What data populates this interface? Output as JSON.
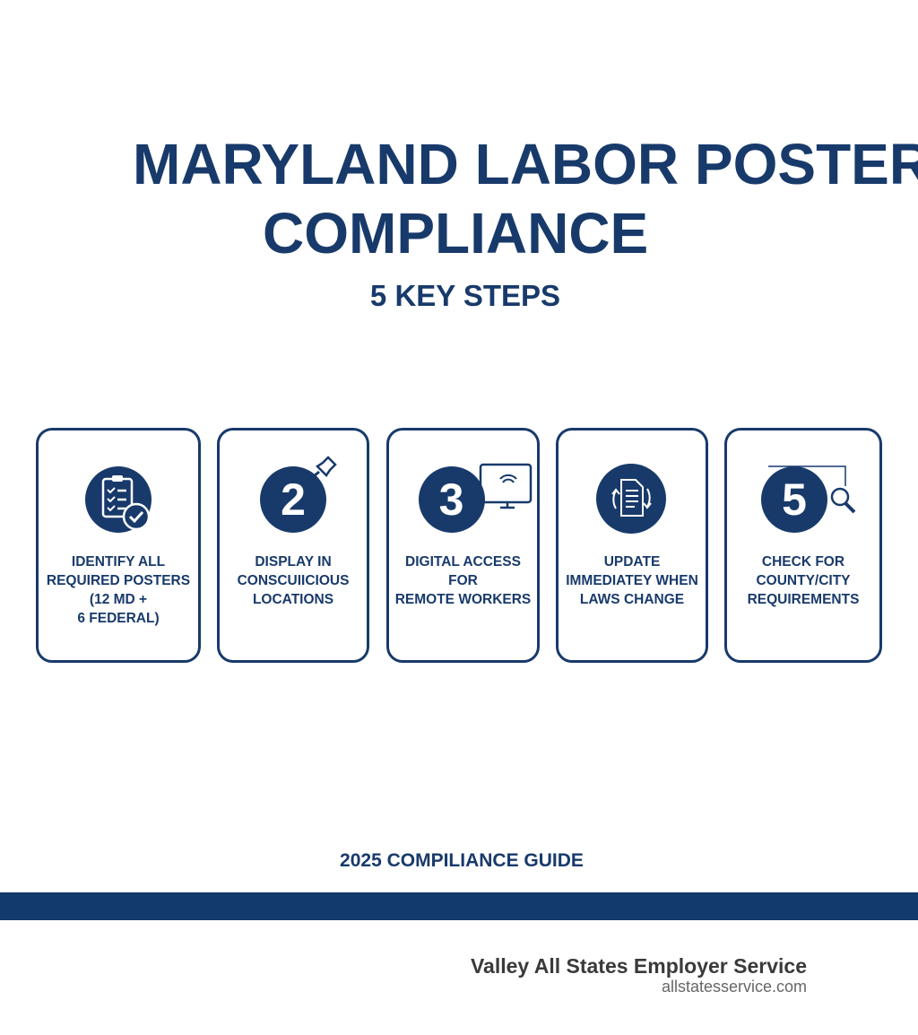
{
  "title": {
    "line1": "MARYLAND LABOR POSTER",
    "line2": "COMPLIANCE",
    "subtitle": "5 KEY STEPS"
  },
  "steps": [
    {
      "number": "",
      "icon": "clipboard-check-icon",
      "text": "IDENTIFY ALL\nREQUIRED POSTERS\n(12 MD +\n6 FEDERAL)"
    },
    {
      "number": "2",
      "icon": "pushpin-icon",
      "text": "DISPLAY IN\nCONSCUIICIOUS\nLOCATIONS"
    },
    {
      "number": "3",
      "icon": "monitor-wifi-icon",
      "text": "DIGITAL ACCESS\nFOR\nREMOTE WORKERS"
    },
    {
      "number": "",
      "icon": "document-refresh-icon",
      "text": "UPDATE\nIMMEDIATEY WHEN\nLAWS CHANGE"
    },
    {
      "number": "5",
      "icon": "map-magnifier-icon",
      "text": "CHECK FOR\nCOUNTY/CITY\nREQUIREMENTS"
    }
  ],
  "footer": {
    "guide": "2025 COMPILIANCE GUIDE",
    "company": "Valley All States Employer Service",
    "url": "allstatesservice.com"
  },
  "colors": {
    "navy": "#183a6b",
    "band": "#123a6a"
  }
}
